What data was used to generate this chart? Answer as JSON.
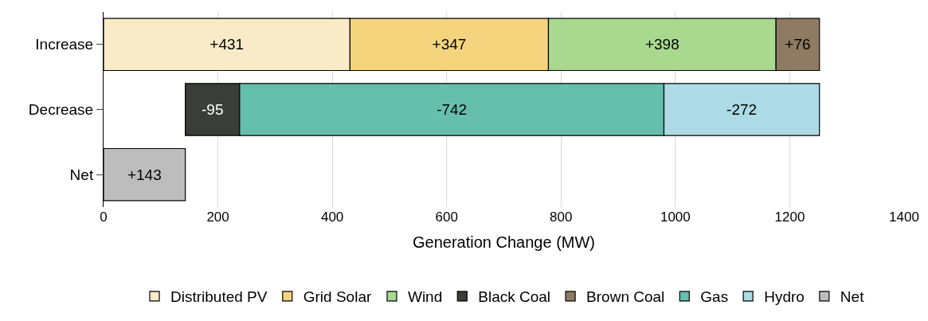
{
  "chart_data": {
    "type": "bar",
    "orientation": "horizontal",
    "xlabel": "Generation Change (MW)",
    "categories": [
      "Increase",
      "Decrease",
      "Net"
    ],
    "xlim": [
      0,
      1400
    ],
    "xticks": [
      0,
      200,
      400,
      600,
      800,
      1000,
      1200,
      1400
    ],
    "grid": "x",
    "legend": "bottom",
    "series": [
      {
        "name": "Distributed PV",
        "color": "#faebc8",
        "values": [
          431,
          null,
          null
        ],
        "base": [
          0,
          null,
          null
        ],
        "value_labels": [
          "+431",
          null,
          null
        ]
      },
      {
        "name": "Grid Solar",
        "color": "#f5d47e",
        "values": [
          347,
          null,
          null
        ],
        "base": [
          431,
          null,
          null
        ],
        "value_labels": [
          "+347",
          null,
          null
        ]
      },
      {
        "name": "Wind",
        "color": "#a9d98f",
        "values": [
          398,
          null,
          null
        ],
        "base": [
          778,
          null,
          null
        ],
        "value_labels": [
          "+398",
          null,
          null
        ]
      },
      {
        "name": "Black Coal",
        "color": "#3a3d38",
        "values": [
          null,
          -95,
          null
        ],
        "base": [
          null,
          238,
          null
        ],
        "value_labels": [
          null,
          "-95",
          null
        ]
      },
      {
        "name": "Brown Coal",
        "color": "#8f7b62",
        "values": [
          76,
          null,
          null
        ],
        "base": [
          1176,
          null,
          null
        ],
        "value_labels": [
          "+76",
          null,
          null
        ]
      },
      {
        "name": "Gas",
        "color": "#66bfad",
        "values": [
          null,
          -742,
          null
        ],
        "base": [
          null,
          980,
          null
        ],
        "value_labels": [
          null,
          "-742",
          null
        ]
      },
      {
        "name": "Hydro",
        "color": "#acdbe5",
        "values": [
          null,
          -272,
          null
        ],
        "base": [
          null,
          1252,
          null
        ],
        "value_labels": [
          null,
          "-272",
          null
        ]
      },
      {
        "name": "Net",
        "color": "#bdbdbd",
        "values": [
          null,
          null,
          143
        ],
        "base": [
          null,
          null,
          0
        ],
        "value_labels": [
          null,
          null,
          "+143"
        ]
      }
    ]
  }
}
